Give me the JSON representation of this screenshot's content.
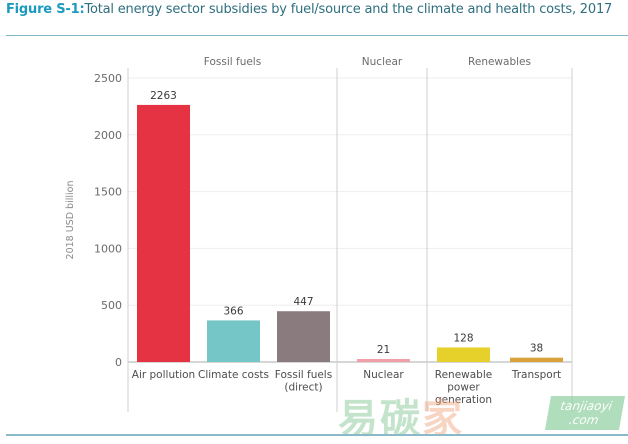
{
  "header": {
    "figure_label": "Figure S-1:",
    "figure_title": "Total energy sector subsidies by fuel/source and the climate and health costs, 2017"
  },
  "chart_data": {
    "type": "bar",
    "title": "Total energy sector subsidies by fuel/source and the climate and health costs, 2017",
    "xlabel": "",
    "ylabel": "2018 USD billion",
    "ylim": [
      0,
      2500
    ],
    "yticks": [
      0,
      500,
      1000,
      1500,
      2000,
      2500
    ],
    "grid": true,
    "groups": [
      {
        "name": "Fossil fuels",
        "categories": [
          "Air pollution",
          "Climate costs",
          "Fossil fuels (direct)"
        ]
      },
      {
        "name": "Nuclear",
        "categories": [
          "Nuclear"
        ]
      },
      {
        "name": "Renewables",
        "categories": [
          "Renewable power generation",
          "Transport"
        ]
      }
    ],
    "categories": [
      "Air pollution",
      "Climate costs",
      "Fossil fuels (direct)",
      "Nuclear",
      "Renewable power generation",
      "Transport"
    ],
    "category_label_lines": [
      [
        "Air pollution"
      ],
      [
        "Climate costs"
      ],
      [
        "Fossil fuels",
        "(direct)"
      ],
      [
        "Nuclear"
      ],
      [
        "Renewable",
        "power",
        "generation"
      ],
      [
        "Transport"
      ]
    ],
    "values": [
      2263,
      366,
      447,
      21,
      128,
      38
    ],
    "colors": [
      "#e63344",
      "#74c6c7",
      "#8a7b7e",
      "#f0a0a8",
      "#e6d12a",
      "#d9a23a"
    ]
  },
  "watermark": {
    "text_green": "易碳",
    "text_orange": "家",
    "box_line1": "tanjiaoyi",
    "box_line2": ".com"
  }
}
